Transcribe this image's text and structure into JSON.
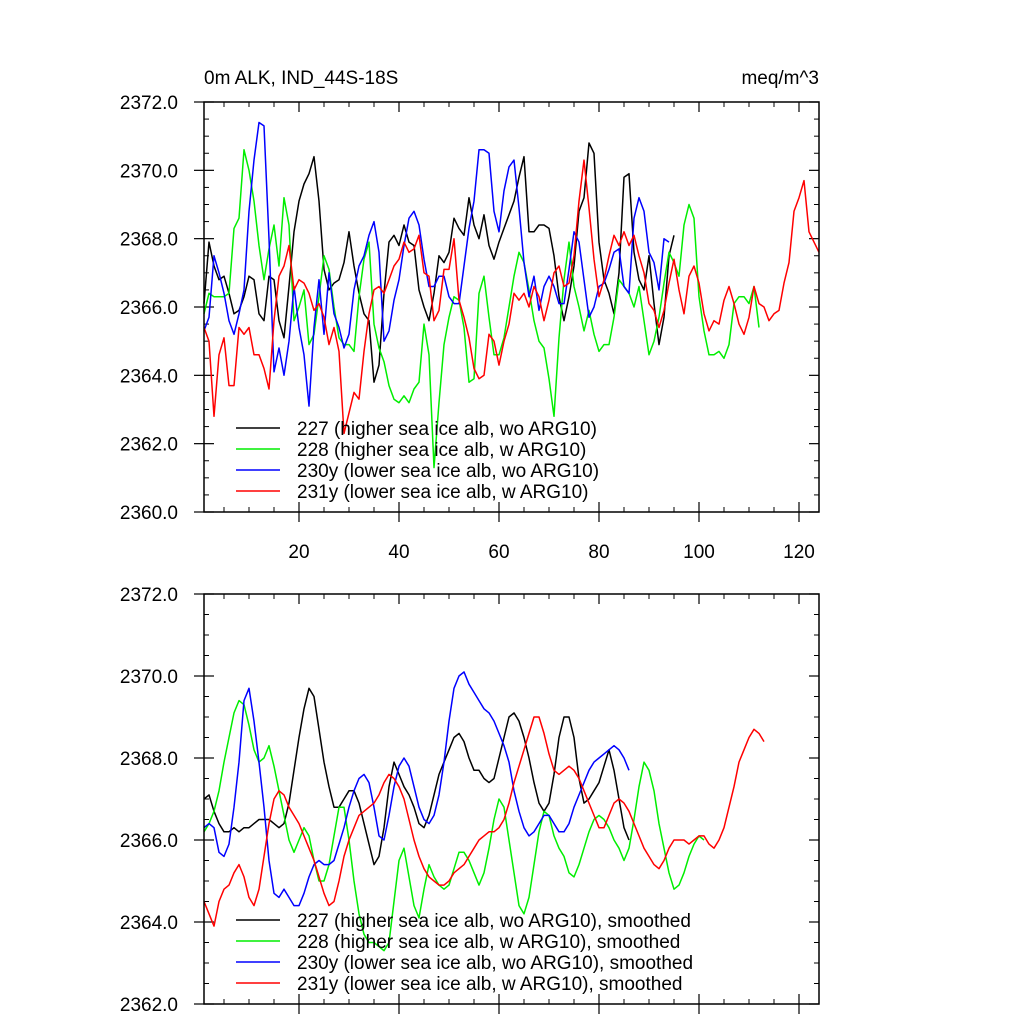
{
  "chart_data": [
    {
      "type": "line",
      "title_left": "0m ALK, IND_44S-18S",
      "title_right": "meq/m^3",
      "xlim": [
        1,
        124
      ],
      "ylim": [
        2360,
        2372
      ],
      "yticks": [
        2360,
        2362,
        2364,
        2366,
        2368,
        2370,
        2372
      ],
      "ytick_labels": [
        "2360.0",
        "2362.0",
        "2364.0",
        "2366.0",
        "2368.0",
        "2370.0",
        "2372.0"
      ],
      "xticks": [
        20,
        40,
        60,
        80,
        100,
        120
      ],
      "xtick_labels": [
        "20",
        "40",
        "60",
        "80",
        "100",
        "120"
      ],
      "legend_position": "bottom-left",
      "series": [
        {
          "name": "227 (higher sea ice alb, wo ARG10)",
          "color": "#000000",
          "x_start": 1,
          "values": [
            2366.1,
            2367.9,
            2367.2,
            2366.8,
            2366.9,
            2366.4,
            2365.8,
            2365.9,
            2366.3,
            2366.9,
            2366.8,
            2365.8,
            2365.6,
            2366.9,
            2366.8,
            2365.6,
            2365.1,
            2366.6,
            2368.2,
            2369.1,
            2369.6,
            2369.9,
            2370.4,
            2369.1,
            2367.1,
            2366.5,
            2366.7,
            2366.8,
            2367.3,
            2368.2,
            2367.2,
            2366.4,
            2365.8,
            2365.6,
            2363.8,
            2364.3,
            2366.4,
            2367.9,
            2368.1,
            2367.8,
            2368.4,
            2367.9,
            2367.8,
            2366.5,
            2366.0,
            2365.6,
            2366.4,
            2367.5,
            2367.3,
            2367.6,
            2368.6,
            2368.3,
            2368.1,
            2369.2,
            2368.4,
            2368.0,
            2368.7,
            2367.8,
            2367.4,
            2367.9,
            2368.3,
            2368.7,
            2369.1,
            2369.8,
            2370.4,
            2368.2,
            2368.2,
            2368.4,
            2368.4,
            2368.3,
            2367.5,
            2366.3,
            2365.6,
            2366.3,
            2367.2,
            2368.8,
            2369.2,
            2370.8,
            2370.5,
            2367.9,
            2366.8,
            2366.4,
            2365.8,
            2367.0,
            2369.8,
            2369.9,
            2367.6,
            2366.8,
            2366.5,
            2367.5,
            2366.1,
            2364.9,
            2365.7,
            2367.5,
            2368.1
          ]
        },
        {
          "name": "228 (higher sea ice alb, w ARG10)",
          "color": "#00ee00",
          "x_start": 1,
          "values": [
            2365.8,
            2366.4,
            2366.3,
            2366.3,
            2366.3,
            2366.4,
            2368.3,
            2368.6,
            2370.6,
            2370.0,
            2369.1,
            2367.8,
            2366.8,
            2367.7,
            2368.4,
            2367.2,
            2369.2,
            2368.4,
            2365.6,
            2366.0,
            2366.5,
            2364.9,
            2365.2,
            2366.3,
            2367.5,
            2367.1,
            2366.0,
            2365.1,
            2364.9,
            2364.9,
            2364.7,
            2366.3,
            2367.4,
            2367.9,
            2365.5,
            2364.8,
            2364.4,
            2363.7,
            2363.3,
            2363.2,
            2363.4,
            2363.2,
            2363.6,
            2363.8,
            2365.5,
            2364.6,
            2361.3,
            2363.2,
            2364.9,
            2365.7,
            2366.3,
            2366.2,
            2365.4,
            2363.8,
            2363.9,
            2366.4,
            2366.9,
            2365.7,
            2364.6,
            2364.6,
            2365.1,
            2366.0,
            2366.9,
            2367.6,
            2367.3,
            2366.5,
            2365.6,
            2365.0,
            2364.8,
            2363.9,
            2362.8,
            2365.1,
            2366.8,
            2367.9,
            2366.6,
            2366.0,
            2365.3,
            2365.9,
            2365.2,
            2364.7,
            2364.9,
            2364.9,
            2365.7,
            2366.8,
            2366.6,
            2366.4,
            2366.0,
            2366.6,
            2365.6,
            2364.6,
            2365.0,
            2365.7,
            2366.7,
            2367.6,
            2367.3,
            2366.9,
            2368.4,
            2369.0,
            2368.6,
            2366.3,
            2365.3,
            2364.6,
            2364.6,
            2364.7,
            2364.5,
            2364.9,
            2366.1,
            2366.3,
            2366.3,
            2366.1,
            2366.6,
            2365.4
          ]
        },
        {
          "name": "230y (lower sea ice alb, wo ARG10)",
          "color": "#0000ff",
          "x_start": 1,
          "values": [
            2365.3,
            2365.7,
            2367.5,
            2367.0,
            2366.4,
            2365.6,
            2365.2,
            2365.8,
            2366.5,
            2368.8,
            2370.3,
            2371.4,
            2371.3,
            2368.0,
            2364.1,
            2364.8,
            2364.0,
            2365.0,
            2366.6,
            2365.4,
            2364.6,
            2363.1,
            2365.4,
            2366.8,
            2365.2,
            2367.0,
            2365.8,
            2365.4,
            2364.8,
            2365.2,
            2366.5,
            2367.2,
            2367.5,
            2368.1,
            2368.5,
            2367.6,
            2365.0,
            2365.3,
            2366.2,
            2366.8,
            2367.8,
            2368.6,
            2368.8,
            2368.4,
            2367.4,
            2366.6,
            2366.6,
            2366.9,
            2366.9,
            2366.3,
            2366.1,
            2366.1,
            2367.2,
            2368.3,
            2369.1,
            2370.6,
            2370.6,
            2370.5,
            2368.8,
            2368.2,
            2369.4,
            2370.1,
            2370.3,
            2368.9,
            2367.3,
            2366.3,
            2366.9,
            2365.9,
            2366.6,
            2366.9,
            2366.6,
            2366.1,
            2366.1,
            2367.1,
            2368.2,
            2367.9,
            2366.8,
            2365.7,
            2366.0,
            2366.6,
            2366.7,
            2367.1,
            2367.6,
            2367.7,
            2366.6,
            2366.4,
            2368.6,
            2369.2,
            2368.8,
            2367.6,
            2367.3,
            2366.5,
            2368.0,
            2367.9
          ]
        },
        {
          "name": "231y (lower sea ice alb, w ARG10)",
          "color": "#ff0000",
          "x_start": 1,
          "values": [
            2365.4,
            2365.0,
            2362.8,
            2364.6,
            2365.1,
            2363.7,
            2363.7,
            2365.4,
            2365.2,
            2365.4,
            2364.6,
            2364.6,
            2364.2,
            2363.6,
            2365.6,
            2366.9,
            2367.2,
            2367.8,
            2366.5,
            2366.8,
            2366.7,
            2366.4,
            2365.9,
            2366.1,
            2365.7,
            2364.9,
            2365.4,
            2364.7,
            2362.3,
            2362.9,
            2363.5,
            2363.3,
            2364.7,
            2365.8,
            2366.5,
            2366.6,
            2366.4,
            2366.8,
            2367.2,
            2367.4,
            2367.9,
            2367.6,
            2367.7,
            2368.1,
            2367.0,
            2366.9,
            2365.6,
            2365.9,
            2367.1,
            2367.1,
            2368.0,
            2366.2,
            2365.7,
            2365.1,
            2364.2,
            2363.9,
            2364.0,
            2365.2,
            2365.0,
            2364.3,
            2365.0,
            2365.5,
            2366.4,
            2366.2,
            2366.4,
            2366.0,
            2366.6,
            2366.3,
            2365.6,
            2366.2,
            2367.0,
            2367.2,
            2366.6,
            2366.7,
            2367.5,
            2369.1,
            2370.3,
            2368.9,
            2367.4,
            2366.3,
            2366.8,
            2367.5,
            2368.1,
            2367.8,
            2368.2,
            2367.8,
            2368.1,
            2367.5,
            2367.0,
            2366.1,
            2365.9,
            2365.4,
            2365.9,
            2366.7,
            2367.4,
            2366.5,
            2365.8,
            2366.9,
            2367.2,
            2366.7,
            2365.8,
            2365.3,
            2365.6,
            2365.5,
            2366.2,
            2366.6,
            2366.1,
            2365.5,
            2365.2,
            2365.7,
            2366.6,
            2366.1,
            2366.0,
            2365.6,
            2365.8,
            2365.9,
            2366.7,
            2367.3,
            2368.8,
            2369.2,
            2369.7,
            2368.2,
            2367.9,
            2367.6
          ]
        }
      ]
    },
    {
      "type": "line",
      "xlim": [
        1,
        124
      ],
      "ylim": [
        2362,
        2372
      ],
      "yticks": [
        2362,
        2364,
        2366,
        2368,
        2370,
        2372
      ],
      "ytick_labels": [
        "2362.0",
        "2364.0",
        "2366.0",
        "2368.0",
        "2370.0",
        "2372.0"
      ],
      "xticks": [
        20,
        40,
        60,
        80,
        100,
        120
      ],
      "legend_position": "bottom-left",
      "series": [
        {
          "name": "227 (higher sea ice alb, wo ARG10), smoothed",
          "color": "#000000",
          "x_start": 1,
          "values": [
            2367.0,
            2367.1,
            2366.7,
            2366.4,
            2366.2,
            2366.2,
            2366.3,
            2366.2,
            2366.3,
            2366.3,
            2366.4,
            2366.5,
            2366.5,
            2366.5,
            2366.4,
            2366.3,
            2366.4,
            2366.9,
            2367.7,
            2368.5,
            2369.2,
            2369.7,
            2369.5,
            2368.7,
            2367.9,
            2367.3,
            2366.8,
            2366.8,
            2367.0,
            2367.2,
            2367.2,
            2366.9,
            2366.4,
            2365.9,
            2365.4,
            2365.6,
            2366.3,
            2367.3,
            2367.9,
            2367.6,
            2367.3,
            2367.1,
            2366.8,
            2366.4,
            2366.3,
            2366.6,
            2367.1,
            2367.6,
            2367.9,
            2368.2,
            2368.5,
            2368.6,
            2368.4,
            2368.0,
            2367.7,
            2367.7,
            2367.5,
            2367.4,
            2367.5,
            2368.0,
            2368.5,
            2369.0,
            2369.1,
            2368.9,
            2368.5,
            2368.0,
            2367.4,
            2366.9,
            2366.7,
            2366.9,
            2367.6,
            2368.5,
            2369.0,
            2369.0,
            2368.5,
            2367.5,
            2366.9,
            2367.0,
            2367.2,
            2367.4,
            2367.8,
            2368.2,
            2367.7,
            2367.0,
            2366.3,
            2366.0
          ]
        },
        {
          "name": "228 (higher sea ice alb, w ARG10), smoothed",
          "color": "#00ee00",
          "x_start": 1,
          "values": [
            2366.2,
            2366.4,
            2366.7,
            2367.2,
            2367.9,
            2368.5,
            2369.1,
            2369.4,
            2369.3,
            2368.8,
            2368.2,
            2367.9,
            2368.0,
            2368.3,
            2367.8,
            2367.2,
            2366.6,
            2366.0,
            2365.7,
            2366.0,
            2366.3,
            2366.1,
            2365.5,
            2365.0,
            2365.0,
            2365.4,
            2366.1,
            2366.8,
            2366.8,
            2366.0,
            2365.0,
            2364.2,
            2363.7,
            2363.5,
            2363.5,
            2363.4,
            2363.3,
            2363.5,
            2364.5,
            2365.5,
            2365.8,
            2365.1,
            2364.4,
            2364.1,
            2364.8,
            2365.4,
            2365.1,
            2364.9,
            2364.8,
            2364.9,
            2365.3,
            2365.7,
            2365.7,
            2365.5,
            2365.2,
            2364.9,
            2365.2,
            2365.8,
            2366.5,
            2367.0,
            2366.8,
            2366.0,
            2365.2,
            2364.4,
            2364.2,
            2364.6,
            2365.4,
            2366.2,
            2366.7,
            2366.6,
            2366.1,
            2365.8,
            2365.6,
            2365.2,
            2365.1,
            2365.4,
            2365.8,
            2366.2,
            2366.5,
            2366.6,
            2366.5,
            2366.3,
            2366.0,
            2365.8,
            2365.5,
            2365.8,
            2366.5,
            2367.3,
            2367.9,
            2367.7,
            2367.2,
            2366.4,
            2365.8,
            2365.2,
            2364.8,
            2364.9,
            2365.2,
            2365.6,
            2365.9,
            2366.1,
            2366.0
          ]
        },
        {
          "name": "230y (lower sea ice alb, wo ARG10), smoothed",
          "color": "#0000ff",
          "x_start": 1,
          "values": [
            2366.3,
            2366.4,
            2366.3,
            2365.7,
            2365.6,
            2365.9,
            2366.8,
            2367.9,
            2369.4,
            2369.7,
            2368.9,
            2367.9,
            2366.8,
            2365.5,
            2364.7,
            2364.6,
            2364.8,
            2364.6,
            2364.4,
            2364.4,
            2364.7,
            2365.1,
            2365.4,
            2365.5,
            2365.4,
            2365.4,
            2365.5,
            2365.9,
            2366.3,
            2366.8,
            2367.2,
            2367.5,
            2367.6,
            2367.4,
            2366.8,
            2366.1,
            2366.0,
            2366.6,
            2367.3,
            2367.8,
            2368.0,
            2367.8,
            2367.3,
            2366.8,
            2366.5,
            2366.4,
            2366.6,
            2367.1,
            2367.9,
            2368.9,
            2369.7,
            2370.0,
            2370.1,
            2369.8,
            2369.6,
            2369.4,
            2369.2,
            2369.1,
            2368.9,
            2368.6,
            2368.3,
            2367.9,
            2367.2,
            2366.7,
            2366.3,
            2366.1,
            2366.2,
            2366.4,
            2366.6,
            2366.6,
            2366.4,
            2366.2,
            2366.2,
            2366.4,
            2366.8,
            2367.1,
            2367.4,
            2367.7,
            2367.9,
            2368.0,
            2368.1,
            2368.2,
            2368.3,
            2368.2,
            2368.0,
            2367.7
          ]
        },
        {
          "name": "231y (lower sea ice alb, w ARG10), smoothed",
          "color": "#ff0000",
          "x_start": 1,
          "values": [
            2364.5,
            2364.2,
            2363.9,
            2364.5,
            2364.8,
            2364.9,
            2365.2,
            2365.4,
            2365.1,
            2364.6,
            2364.4,
            2364.8,
            2365.6,
            2366.4,
            2367.0,
            2367.2,
            2367.1,
            2366.8,
            2366.6,
            2366.4,
            2366.1,
            2365.8,
            2365.5,
            2365.1,
            2364.7,
            2364.4,
            2364.5,
            2365.0,
            2365.6,
            2366.0,
            2366.3,
            2366.6,
            2366.7,
            2366.8,
            2366.9,
            2367.1,
            2367.4,
            2367.6,
            2367.5,
            2367.3,
            2367.0,
            2366.5,
            2366.0,
            2365.6,
            2365.3,
            2365.1,
            2365.0,
            2364.9,
            2364.9,
            2365.0,
            2365.2,
            2365.3,
            2365.4,
            2365.6,
            2365.8,
            2366.0,
            2366.1,
            2366.2,
            2366.2,
            2366.3,
            2366.5,
            2366.9,
            2367.4,
            2367.8,
            2368.2,
            2368.6,
            2369.0,
            2369.0,
            2368.6,
            2368.1,
            2367.7,
            2367.6,
            2367.7,
            2367.8,
            2367.7,
            2367.5,
            2367.2,
            2366.9,
            2366.6,
            2366.3,
            2366.3,
            2366.6,
            2366.9,
            2367.0,
            2366.9,
            2366.7,
            2366.4,
            2366.1,
            2365.8,
            2365.6,
            2365.4,
            2365.3,
            2365.5,
            2365.8,
            2366.0,
            2366.0,
            2366.0,
            2365.9,
            2366.0,
            2366.1,
            2366.1,
            2365.9,
            2365.8,
            2366.0,
            2366.3,
            2366.8,
            2367.3,
            2367.9,
            2368.2,
            2368.5,
            2368.7,
            2368.6,
            2368.4
          ]
        }
      ]
    }
  ]
}
